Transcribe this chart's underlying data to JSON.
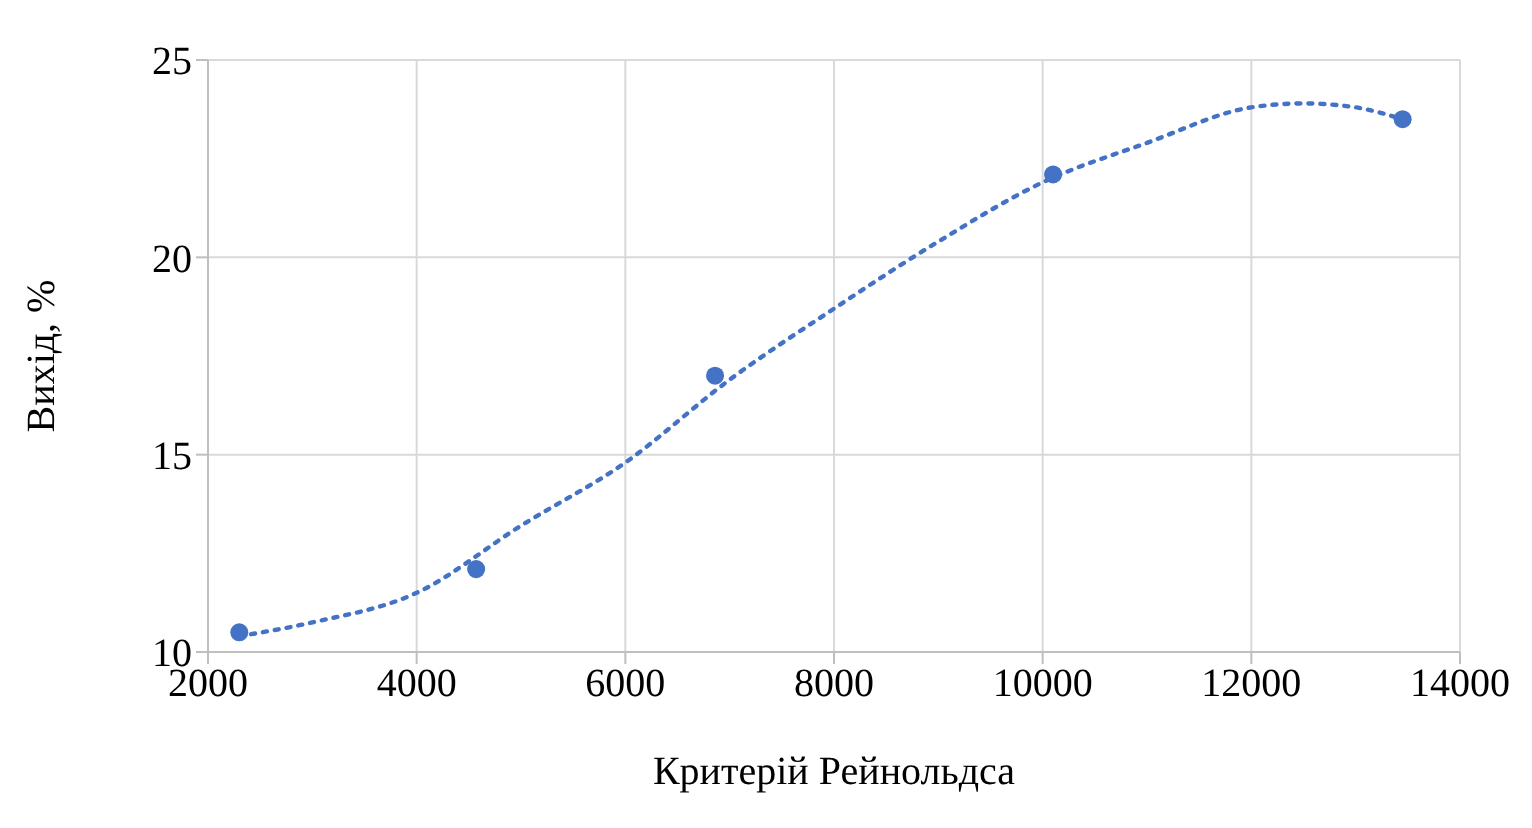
{
  "chart_data": {
    "type": "scatter",
    "xlabel": "Критерій Рейнольдса",
    "ylabel": "Вихід, %",
    "xlim": [
      2000,
      14000
    ],
    "xticks": [
      2000,
      4000,
      6000,
      8000,
      10000,
      12000,
      14000
    ],
    "ylim": [
      10,
      25
    ],
    "yticks": [
      10,
      15,
      20,
      25
    ],
    "grid": true,
    "legend": false,
    "series": [
      {
        "color": "#4472c4",
        "marker": "circle",
        "x": [
          2300,
          4570,
          6860,
          10100,
          13450
        ],
        "values": [
          10.5,
          12.1,
          17.0,
          22.1,
          23.5
        ]
      },
      {
        "type": "line",
        "color": "#4472c4",
        "marker": "none",
        "line_style": "dotted",
        "x": [
          2300,
          3000,
          4000,
          5000,
          6000,
          7000,
          8000,
          9000,
          10000,
          11000,
          12000,
          12500,
          13000,
          13450
        ],
        "values": [
          10.4,
          10.75,
          11.5,
          13.2,
          14.8,
          16.9,
          18.7,
          20.4,
          21.9,
          22.9,
          23.8,
          23.9,
          23.8,
          23.5
        ]
      }
    ]
  }
}
